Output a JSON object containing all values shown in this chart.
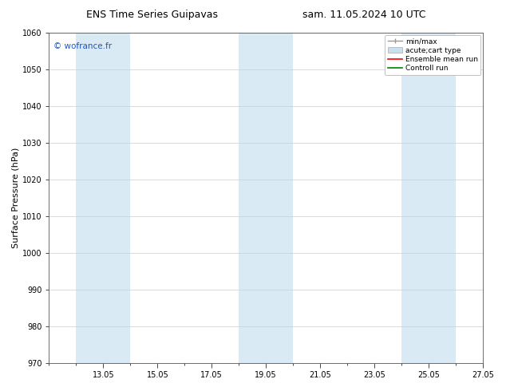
{
  "title_left": "ENS Time Series Guipavas",
  "title_right": "sam. 11.05.2024 10 UTC",
  "ylabel": "Surface Pressure (hPa)",
  "ylim": [
    970,
    1060
  ],
  "yticks": [
    970,
    980,
    990,
    1000,
    1010,
    1020,
    1030,
    1040,
    1050,
    1060
  ],
  "xtick_labels": [
    "13.05",
    "15.05",
    "17.05",
    "19.05",
    "21.05",
    "23.05",
    "25.05",
    "27.05"
  ],
  "xtick_positions": [
    2,
    4,
    6,
    8,
    10,
    12,
    14,
    16
  ],
  "minor_xtick_positions": [
    0,
    1,
    2,
    3,
    4,
    5,
    6,
    7,
    8,
    9,
    10,
    11,
    12,
    13,
    14,
    15,
    16
  ],
  "shaded_bands": [
    {
      "x_start": 1,
      "x_end": 3
    },
    {
      "x_start": 7,
      "x_end": 9
    },
    {
      "x_start": 13,
      "x_end": 15
    }
  ],
  "band_color": "#daeaf5",
  "background_color": "#ffffff",
  "watermark_text": "© wofrance.fr",
  "watermark_color": "#1a56c4",
  "legend_labels": [
    "min/max",
    "acute;cart type",
    "Ensemble mean run",
    "Controll run"
  ],
  "legend_colors": [
    "#aaaaaa",
    "#c8e0f0",
    "#ff0000",
    "#008000"
  ],
  "title_fontsize": 9,
  "tick_fontsize": 7,
  "ylabel_fontsize": 8,
  "legend_fontsize": 6.5,
  "watermark_fontsize": 7.5,
  "spine_color": "#555555",
  "xlim": [
    0,
    16
  ]
}
